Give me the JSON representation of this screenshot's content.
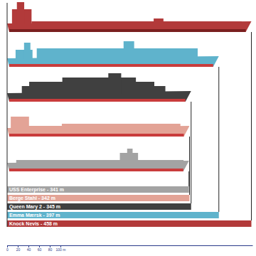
{
  "chart_data": {
    "type": "bar",
    "orientation": "horizontal",
    "categories": [
      "USS Enterprise - 341 m",
      "Berge Stahl - 342 m",
      "Queen Mary 2 - 345 m",
      "Emma Mærsk - 397 m",
      "Knock Nevis - 458 m"
    ],
    "values": [
      341,
      342,
      345,
      397,
      458
    ],
    "colors": [
      "#a3a3a3",
      "#e3a396",
      "#404040",
      "#5fb3cc",
      "#b23a3a"
    ],
    "xlim": [
      0,
      460
    ],
    "xticks": [
      0,
      20,
      40,
      60,
      80,
      {
        "value": 100,
        "label": "100 m"
      }
    ]
  }
}
